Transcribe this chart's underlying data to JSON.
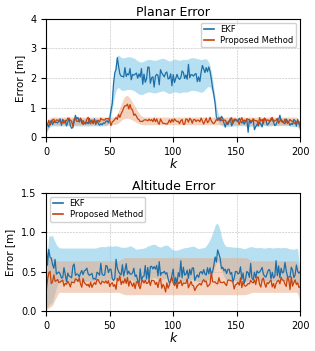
{
  "title1": "Planar Error",
  "title2": "Altitude Error",
  "xlabel": "k",
  "ylabel": "Error [m]",
  "xlim": [
    0,
    200
  ],
  "ylim1": [
    0,
    4
  ],
  "ylim2": [
    0,
    1.5
  ],
  "yticks1": [
    0,
    1,
    2,
    3,
    4
  ],
  "yticks2": [
    0,
    0.5,
    1.0,
    1.5
  ],
  "xticks": [
    0,
    50,
    100,
    150,
    200
  ],
  "ekf_fill_color": "#7BC8E8",
  "proposed_fill_color": "#E8A882",
  "ekf_line_color": "#1E6FA8",
  "proposed_line_color": "#C8420A",
  "seed": 42
}
